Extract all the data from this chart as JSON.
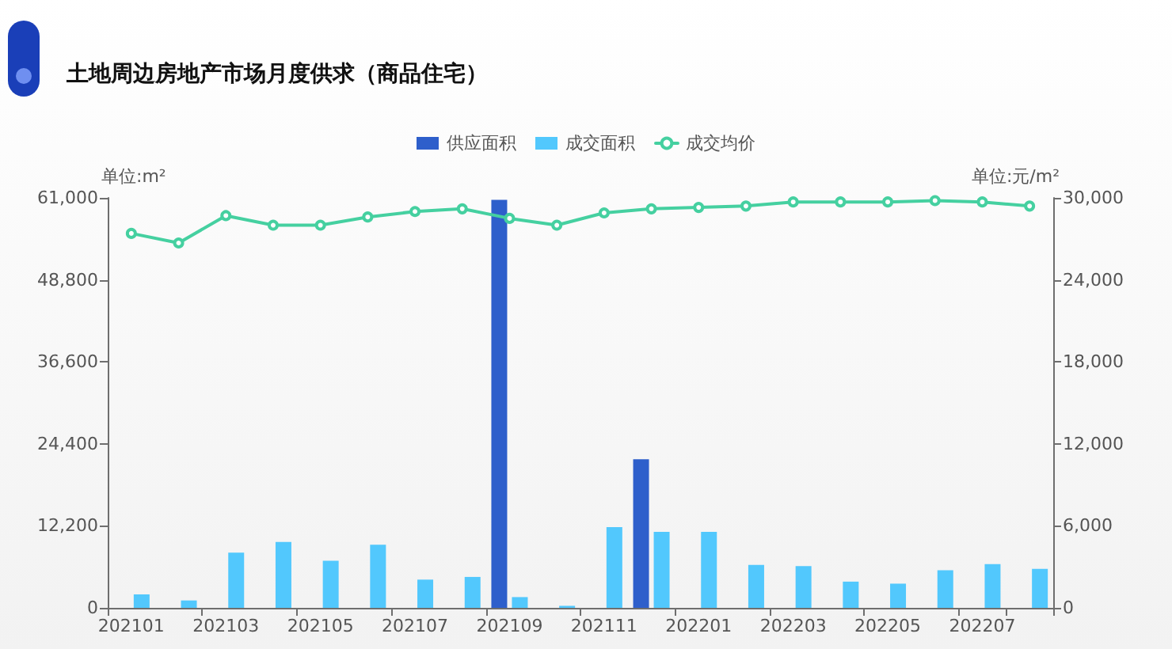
{
  "chart_data": {
    "type": "bar",
    "title": "土地周边房地产市场月度供求（商品住宅）",
    "ylabel": "单位:m²",
    "y2label": "单位:元/m²",
    "categories": [
      "202101",
      null,
      "202103",
      null,
      "202105",
      null,
      "202107",
      null,
      "202109",
      null,
      "202111",
      null,
      "202201",
      null,
      "202203",
      null,
      "202205",
      null,
      "202207",
      null
    ],
    "series": [
      {
        "name": "供应面积",
        "color": "#2e5fcb",
        "values": [
          null,
          null,
          null,
          null,
          null,
          null,
          null,
          null,
          60700,
          null,
          null,
          22100,
          null,
          null,
          null,
          null,
          null,
          null,
          null,
          null
        ]
      },
      {
        "name": "成交面积",
        "color": "#52c8fd",
        "values": [
          2000,
          1100,
          8200,
          9800,
          7000,
          9400,
          4200,
          4600,
          1600,
          300,
          12000,
          11300,
          11300,
          6400,
          6200,
          3900,
          3600,
          5600,
          6500,
          5800
        ]
      },
      {
        "name": "成交均价",
        "type": "line",
        "axis": "y2",
        "color": "#45d0a0",
        "values": [
          27400,
          26700,
          28700,
          28000,
          28000,
          28600,
          29000,
          29200,
          28500,
          28000,
          28900,
          29200,
          29300,
          29400,
          29700,
          29700,
          29700,
          29800,
          29700,
          29400
        ]
      }
    ],
    "ylim": [
      0,
      61000
    ],
    "yticks": [
      0,
      {
        "value": 12200,
        "label": "12,200"
      },
      {
        "value": 24400,
        "label": "24,400"
      },
      {
        "value": 36600,
        "label": "36,600"
      },
      {
        "value": 48800,
        "label": "48,800"
      },
      {
        "value": 61000,
        "label": "61,000"
      }
    ],
    "y2lim": [
      0,
      30000
    ],
    "y2ticks": [
      0,
      {
        "value": 6000,
        "label": "6,000"
      },
      {
        "value": 12000,
        "label": "12,000"
      },
      {
        "value": 18000,
        "label": "18,000"
      },
      {
        "value": 24000,
        "label": "24,000"
      },
      {
        "value": 30000,
        "label": "30,000"
      }
    ],
    "legend": "top",
    "marker": "circle",
    "line_style": "solid",
    "grid": false
  }
}
